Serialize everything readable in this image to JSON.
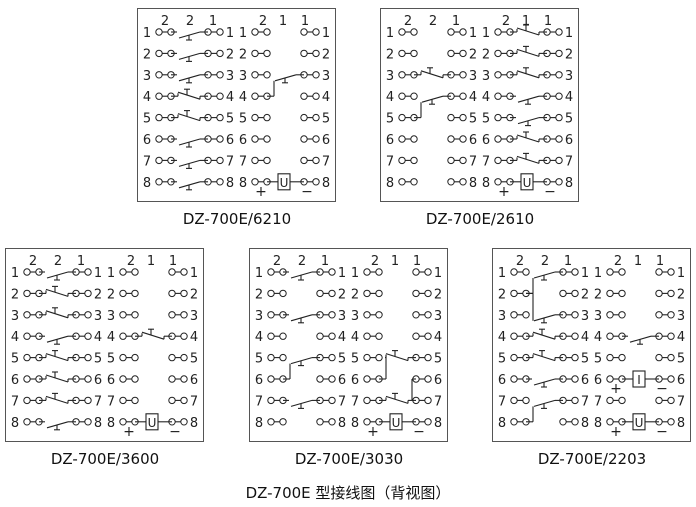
{
  "header_labels": {
    "left": [
      "2",
      "2",
      "1"
    ],
    "right": [
      "2",
      "1",
      "1"
    ]
  },
  "terminal_numbers": [
    "1",
    "2",
    "3",
    "4",
    "5",
    "6",
    "7",
    "8"
  ],
  "relay_signs": {
    "plus": "+",
    "minus": "−"
  },
  "panels": [
    {
      "id": "6210",
      "caption": "DZ-700E/6210",
      "contacts": [
        {
          "side": "L",
          "row": 1,
          "type": "no"
        },
        {
          "side": "L",
          "row": 2,
          "type": "no"
        },
        {
          "side": "L",
          "row": 3,
          "type": "no"
        },
        {
          "side": "L",
          "row": 4,
          "type": "nc"
        },
        {
          "side": "L",
          "row": 5,
          "type": "nc"
        },
        {
          "side": "L",
          "row": 6,
          "type": "no"
        },
        {
          "side": "L",
          "row": 7,
          "type": "no"
        },
        {
          "side": "L",
          "row": 8,
          "type": "no"
        },
        {
          "side": "R",
          "row": 3,
          "type": "no",
          "from": 4
        }
      ],
      "coils": [
        {
          "row": 8,
          "label": "U"
        }
      ]
    },
    {
      "id": "2610",
      "caption": "DZ-700E/2610",
      "contacts": [
        {
          "side": "L",
          "row": 3,
          "type": "nc"
        },
        {
          "side": "L",
          "row": 4,
          "type": "no",
          "from": 5
        },
        {
          "side": "R",
          "row": 1,
          "type": "nc"
        },
        {
          "side": "R",
          "row": 2,
          "type": "nc"
        },
        {
          "side": "R",
          "row": 3,
          "type": "nc"
        },
        {
          "side": "R",
          "row": 4,
          "type": "no"
        },
        {
          "side": "R",
          "row": 5,
          "type": "no"
        },
        {
          "side": "R",
          "row": 6,
          "type": "nc"
        },
        {
          "side": "R",
          "row": 7,
          "type": "nc"
        }
      ],
      "coils": [
        {
          "row": 8,
          "label": "U"
        }
      ]
    },
    {
      "id": "3600",
      "caption": "DZ-700E/3600",
      "contacts": [
        {
          "side": "L",
          "row": 1,
          "type": "no"
        },
        {
          "side": "L",
          "row": 2,
          "type": "nc"
        },
        {
          "side": "L",
          "row": 3,
          "type": "nc"
        },
        {
          "side": "L",
          "row": 4,
          "type": "no"
        },
        {
          "side": "L",
          "row": 5,
          "type": "nc"
        },
        {
          "side": "L",
          "row": 6,
          "type": "nc"
        },
        {
          "side": "L",
          "row": 7,
          "type": "nc"
        },
        {
          "side": "L",
          "row": 8,
          "type": "no"
        },
        {
          "side": "R",
          "row": 4,
          "type": "nc"
        }
      ],
      "coils": [
        {
          "row": 8,
          "label": "U"
        }
      ]
    },
    {
      "id": "3030",
      "caption": "DZ-700E/3030",
      "contacts": [
        {
          "side": "L",
          "row": 1,
          "type": "no"
        },
        {
          "side": "L",
          "row": 3,
          "type": "no"
        },
        {
          "side": "L",
          "row": 5,
          "type": "no",
          "from": 6
        },
        {
          "side": "L",
          "row": 7,
          "type": "no"
        },
        {
          "side": "R",
          "row": 5,
          "type": "nc",
          "from": 6
        },
        {
          "side": "R",
          "row": 7,
          "type": "nc",
          "to": 6
        }
      ],
      "coils": [
        {
          "row": 8,
          "label": "U"
        }
      ]
    },
    {
      "id": "2203",
      "caption": "DZ-700E/2203",
      "contacts": [
        {
          "side": "L",
          "row": 1,
          "type": "no",
          "from": 2
        },
        {
          "side": "L",
          "row": 3,
          "type": "no",
          "from": 2
        },
        {
          "side": "L",
          "row": 4,
          "type": "nc"
        },
        {
          "side": "L",
          "row": 5,
          "type": "nc"
        },
        {
          "side": "L",
          "row": 6,
          "type": "no"
        },
        {
          "side": "L",
          "row": 7,
          "type": "no",
          "from": 8
        },
        {
          "side": "R",
          "row": 4,
          "type": "no"
        }
      ],
      "coils": [
        {
          "row": 6,
          "label": "I"
        },
        {
          "row": 8,
          "label": "U"
        }
      ]
    }
  ],
  "footer": "DZ-700E  型接线图（背视图）"
}
